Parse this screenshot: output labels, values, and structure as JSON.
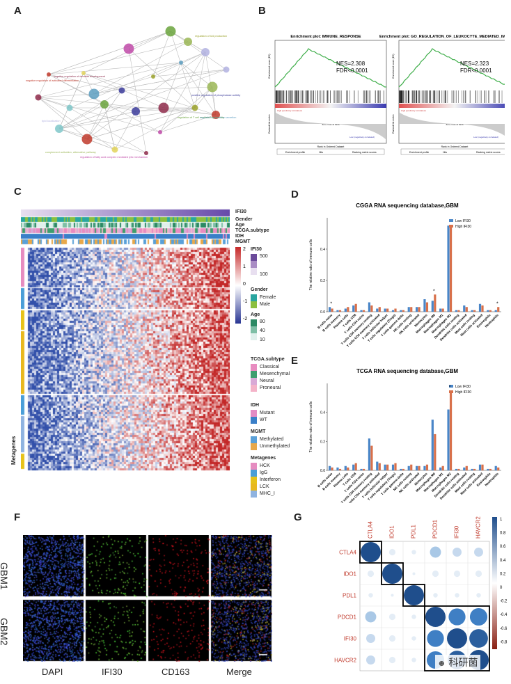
{
  "panel_letters": {
    "a": "A",
    "b": "B",
    "c": "C",
    "d": "D",
    "e": "E",
    "f": "F",
    "g": "G"
  },
  "panel_a": {
    "nodes": [
      {
        "label": "negative regulation of activated differentiation",
        "color": "#c0392b"
      },
      {
        "label": "negative regulation of dendrite development",
        "color": "#8e2a4a"
      },
      {
        "label": "positive regulation of phosphatase activity",
        "color": "#3b3b9a"
      },
      {
        "label": "regulation of T cell mediated cytotoxicity",
        "color": "#6aa33c"
      },
      {
        "label": "regulation of cytokine secretion",
        "color": "#5c9dc0"
      },
      {
        "label": "regulation of IL6 production",
        "color": "#9aa12a"
      },
      {
        "label": "lipid localization",
        "color": "#b2b2e0"
      },
      {
        "label": "complement activation, alternative pathway",
        "color": "#9ab655"
      },
      {
        "label": "regulation of fatty acid complex mediated lytic mechanism",
        "color": "#c04aa8"
      }
    ]
  },
  "panel_b": {
    "plots": [
      {
        "title": "Enrichment plot: IMMUNE_RESPONSE",
        "nes": "NES=2.308",
        "fdr": "FDR<0.0001"
      },
      {
        "title": "Enrichment plot: GO_REGULATION_OF_LEUKOCYTE_MEDIATED_IMMUNITY",
        "nes": "NES=2.323",
        "fdr": "FDR<0.0001"
      }
    ],
    "y_label_top": "Enrichment score (ES)",
    "y_label_bottom": "Ranked list metric",
    "x_label": "Rank in Ordered Dataset",
    "pos_label": "High (positively correlated)",
    "neg_label": "Low (negatively correlated)",
    "zero_label": "Zero cross at 9998",
    "legend": [
      "Enrichment profile",
      "Hits",
      "Ranking metric scores"
    ]
  },
  "panel_c": {
    "track_labels": [
      "IFI30",
      "Gender",
      "Age",
      "TCGA.subtype",
      "IDH",
      "MGMT"
    ],
    "colorbar_ticks": [
      "2",
      "1",
      "0",
      "-1",
      "-2"
    ],
    "side_label": "Metagenes",
    "legends": [
      {
        "title": "IFI30",
        "items": [
          "500",
          "100"
        ]
      },
      {
        "title": "Gender",
        "items": [
          "Female",
          "Male"
        ]
      },
      {
        "title": "Age",
        "items": [
          "80",
          "40",
          "10"
        ]
      },
      {
        "title": "TCGA.subtype",
        "items": [
          "Classical",
          "Mesenchymal",
          "Neural",
          "Proneural"
        ]
      },
      {
        "title": "IDH",
        "items": [
          "Mutant",
          "WT"
        ]
      },
      {
        "title": "MGMT",
        "items": [
          "Methylated",
          "Unmethylated"
        ]
      },
      {
        "title": "Metagenes",
        "items": [
          "HCK",
          "IgG",
          "Interferon",
          "LCK",
          "MHC_I"
        ]
      }
    ],
    "colors": {
      "ifi30": [
        "#e8dff0",
        "#a98cc4",
        "#6b4a9a"
      ],
      "female": "#2aa6a0",
      "male": "#8bbf3f",
      "age": [
        "#e0f0ec",
        "#7fbfa6",
        "#2c8a64"
      ],
      "classical": "#e88cc0",
      "mesenchymal": "#3f9e6e",
      "neural": "#d9a9d6",
      "proneural": "#f4b3c8",
      "mutant": "#e48bc4",
      "wt": "#3a7fc8",
      "methylated": "#5aa0d8",
      "unmethylated": "#e8a84a",
      "hck": "#e68cc0",
      "igg": "#4a9ed8",
      "interferon": "#e6c21a",
      "lck": "#e8b81e",
      "mhc": "#8fb3e0"
    }
  },
  "chart_data": [
    {
      "type": "bar",
      "title": "CGGA RNA sequencing database,GBM",
      "xlabel": "",
      "ylabel": "The relative ratio of immune cells",
      "ylim": [
        0,
        0.6
      ],
      "yticks": [
        "0.0",
        "0.2",
        "0.4"
      ],
      "categories": [
        "B cells naive",
        "B cells memory",
        "Plasma cells",
        "T cells CD8",
        "T cells CD4 naive",
        "T cells CD4 memory resting",
        "T cells CD4 memory activated",
        "T cells follicular helper",
        "T cells regulatory (Tregs)",
        "T cells gamma delta",
        "NK cells resting",
        "NK cells activated",
        "Monocytes",
        "Macrophages M0",
        "Macrophages M1",
        "Macrophages M2",
        "Dendritic cells resting",
        "Dendritic cells activated",
        "Mast cells resting",
        "Mast cells activated",
        "Eosinophils",
        "Neutrophils"
      ],
      "series": [
        {
          "name": "Low IFI30",
          "color": "#4a86c8",
          "values": [
            0.03,
            0.01,
            0.02,
            0.04,
            0.01,
            0.06,
            0.02,
            0.02,
            0.01,
            0.01,
            0.03,
            0.03,
            0.08,
            0.07,
            0.02,
            0.55,
            0.01,
            0.04,
            0.01,
            0.05,
            0.01,
            0.01
          ]
        },
        {
          "name": "High IFI30",
          "color": "#d8704a",
          "values": [
            0.02,
            0.01,
            0.03,
            0.05,
            0.01,
            0.04,
            0.03,
            0.02,
            0.02,
            0.01,
            0.03,
            0.03,
            0.06,
            0.11,
            0.02,
            0.55,
            0.01,
            0.03,
            0.01,
            0.04,
            0.01,
            0.03
          ]
        }
      ],
      "annotations": [
        "*",
        "*",
        "*"
      ]
    },
    {
      "type": "bar",
      "title": "TCGA RNA sequencing database,GBM",
      "xlabel": "",
      "ylabel": "The relative ratio of immune cells",
      "ylim": [
        0,
        0.6
      ],
      "yticks": [
        "0.0",
        "0.2",
        "0.4"
      ],
      "categories": [
        "B cells naive",
        "B cells memory",
        "Plasma cells",
        "T cells CD8",
        "T cells CD4 naive",
        "T cells CD4 memory resting",
        "T cells CD4 memory activated",
        "T cells follicular helper",
        "T cells regulatory (Tregs)",
        "T cells gamma delta",
        "NK cells resting",
        "NK cells activated",
        "Monocytes",
        "Macrophages M0",
        "Macrophages M1",
        "Macrophages M2",
        "Dendritic cells resting",
        "Dendritic cells activated",
        "Mast cells resting",
        "Mast cells activated",
        "Eosinophils",
        "Neutrophils"
      ],
      "series": [
        {
          "name": "Low IFI30",
          "color": "#4a86c8",
          "values": [
            0.03,
            0.02,
            0.03,
            0.04,
            0.01,
            0.22,
            0.06,
            0.04,
            0.04,
            0.01,
            0.03,
            0.03,
            0.03,
            0.35,
            0.02,
            0.42,
            0.01,
            0.02,
            0.01,
            0.04,
            0.01,
            0.03
          ]
        },
        {
          "name": "High IFI30",
          "color": "#d8704a",
          "values": [
            0.02,
            0.01,
            0.02,
            0.05,
            0.01,
            0.17,
            0.05,
            0.04,
            0.05,
            0.01,
            0.04,
            0.03,
            0.04,
            0.25,
            0.03,
            0.55,
            0.01,
            0.03,
            0.01,
            0.04,
            0.01,
            0.02
          ]
        }
      ],
      "annotations": [
        "*"
      ]
    },
    {
      "type": "heatmap",
      "title": "",
      "labels": [
        "CTLA4",
        "IDO1",
        "PDL1",
        "PDCD1",
        "IFI30",
        "HAVCR2"
      ],
      "matrix": [
        [
          1.0,
          0.1,
          0.05,
          0.3,
          0.2,
          0.2
        ],
        [
          0.1,
          1.0,
          0.02,
          0.1,
          0.1,
          0.1
        ],
        [
          0.05,
          0.02,
          1.0,
          0.05,
          0.05,
          0.05
        ],
        [
          0.3,
          0.1,
          0.05,
          1.0,
          0.7,
          0.75
        ],
        [
          0.2,
          0.1,
          0.05,
          0.7,
          1.0,
          0.85
        ],
        [
          0.2,
          0.1,
          0.05,
          0.75,
          0.85,
          1.0
        ]
      ],
      "colorbar_ticks": [
        "1",
        "0.8",
        "0.6",
        "0.4",
        "0.2",
        "0",
        "-0.2",
        "-0.4",
        "-0.6",
        "-0.8"
      ]
    }
  ],
  "panel_f": {
    "rows": [
      "GBM1",
      "GBM2"
    ],
    "columns": [
      "DAPI",
      "IFI30",
      "CD163",
      "Merge"
    ]
  },
  "watermark": "科研菌"
}
